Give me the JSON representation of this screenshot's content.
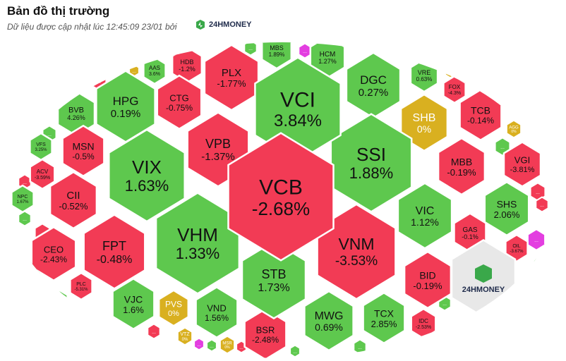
{
  "header": {
    "title": "Bản đồ thị trường",
    "subtitle": "Dữ liệu được cập nhật lúc 12:45:09 23/01 bởi",
    "brand": "24HMONEY"
  },
  "colors": {
    "up": "#5ec84e",
    "down": "#f23b55",
    "ref": "#d9b020",
    "ceiling": "#e33ee0",
    "watermark_bg": "#e8e8e8",
    "border": "#ffffff"
  },
  "cells": [
    {
      "id": "VCB",
      "ticker": "VCB",
      "change": "-2.68%",
      "status": "down"
    },
    {
      "id": "VCI",
      "ticker": "VCI",
      "change": "3.84%",
      "status": "up"
    },
    {
      "id": "SSI",
      "ticker": "SSI",
      "change": "1.88%",
      "status": "up"
    },
    {
      "id": "VNM",
      "ticker": "VNM",
      "change": "-3.53%",
      "status": "down"
    },
    {
      "id": "VHM",
      "ticker": "VHM",
      "change": "1.33%",
      "status": "up"
    },
    {
      "id": "VIX",
      "ticker": "VIX",
      "change": "1.63%",
      "status": "up"
    },
    {
      "id": "VPB",
      "ticker": "VPB",
      "change": "-1.37%",
      "status": "down"
    },
    {
      "id": "STB",
      "ticker": "STB",
      "change": "1.73%",
      "status": "up"
    },
    {
      "id": "FPT",
      "ticker": "FPT",
      "change": "-0.48%",
      "status": "down"
    },
    {
      "id": "HPG",
      "ticker": "HPG",
      "change": "0.19%",
      "status": "up"
    },
    {
      "id": "PLX",
      "ticker": "PLX",
      "change": "-1.77%",
      "status": "down"
    },
    {
      "id": "DGC",
      "ticker": "DGC",
      "change": "0.27%",
      "status": "up"
    },
    {
      "id": "VIC",
      "ticker": "VIC",
      "change": "1.12%",
      "status": "up"
    },
    {
      "id": "MWG",
      "ticker": "MWG",
      "change": "0.69%",
      "status": "up"
    },
    {
      "id": "SHB",
      "ticker": "SHB",
      "change": "0%",
      "status": "ref"
    },
    {
      "id": "MBB",
      "ticker": "MBB",
      "change": "-0.19%",
      "status": "down"
    },
    {
      "id": "CTG",
      "ticker": "CTG",
      "change": "-0.75%",
      "status": "down"
    },
    {
      "id": "CII",
      "ticker": "CII",
      "change": "-0.52%",
      "status": "down"
    },
    {
      "id": "BID",
      "ticker": "BID",
      "change": "-0.19%",
      "status": "down"
    },
    {
      "id": "TCX",
      "ticker": "TCX",
      "change": "2.85%",
      "status": "up"
    },
    {
      "id": "VJC",
      "ticker": "VJC",
      "change": "1.6%",
      "status": "up"
    },
    {
      "id": "VND",
      "ticker": "VND",
      "change": "1.56%",
      "status": "up"
    },
    {
      "id": "BSR",
      "ticker": "BSR",
      "change": "-2.48%",
      "status": "down"
    },
    {
      "id": "SHS",
      "ticker": "SHS",
      "change": "2.06%",
      "status": "up"
    },
    {
      "id": "TCB",
      "ticker": "TCB",
      "change": "-0.14%",
      "status": "down"
    },
    {
      "id": "MSN",
      "ticker": "MSN",
      "change": "-0.5%",
      "status": "down"
    },
    {
      "id": "CEO",
      "ticker": "CEO",
      "change": "-2.43%",
      "status": "down"
    },
    {
      "id": "VGI",
      "ticker": "VGI",
      "change": "-3.81%",
      "status": "down"
    },
    {
      "id": "BVB",
      "ticker": "BVB",
      "change": "4.26%",
      "status": "up"
    },
    {
      "id": "PVS",
      "ticker": "PVS",
      "change": "0%",
      "status": "ref"
    },
    {
      "id": "GAS",
      "ticker": "GAS",
      "change": "-0.1%",
      "status": "down"
    },
    {
      "id": "HCM",
      "ticker": "HCM",
      "change": "1.27%",
      "status": "up"
    },
    {
      "id": "MBS",
      "ticker": "MBS",
      "change": "1.89%",
      "status": "up"
    },
    {
      "id": "HDB",
      "ticker": "HDB",
      "change": "-1.2%",
      "status": "down"
    },
    {
      "id": "VRE",
      "ticker": "VRE",
      "change": "0.63%",
      "status": "up"
    },
    {
      "id": "FOX",
      "ticker": "FOX",
      "change": "-4.3%",
      "status": "down"
    },
    {
      "id": "AAS",
      "ticker": "AAS",
      "change": "3.6%",
      "status": "up"
    },
    {
      "id": "VFS",
      "ticker": "VFS",
      "change": "3.25%",
      "status": "up"
    },
    {
      "id": "ACV",
      "ticker": "ACV",
      "change": "-3.59%",
      "status": "down"
    },
    {
      "id": "NPC",
      "ticker": "NPC",
      "change": "1.67%",
      "status": "up"
    },
    {
      "id": "PLC",
      "ticker": "PLC",
      "change": "-5.31%",
      "status": "down"
    },
    {
      "id": "IDC",
      "ticker": "IDC",
      "change": "-2.53%",
      "status": "down"
    },
    {
      "id": "VTZ",
      "ticker": "VTZ",
      "change": "0%",
      "status": "ref"
    },
    {
      "id": "MSR",
      "ticker": "MSR",
      "change": "0%",
      "status": "ref"
    },
    {
      "id": "OIL",
      "ticker": "OIL",
      "change": "-3.67%",
      "status": "down"
    },
    {
      "id": "AGG",
      "ticker": "AGG",
      "change": "0%",
      "status": "ref"
    }
  ],
  "more_label": "...",
  "watermark": {
    "text": "24HMONEY"
  }
}
